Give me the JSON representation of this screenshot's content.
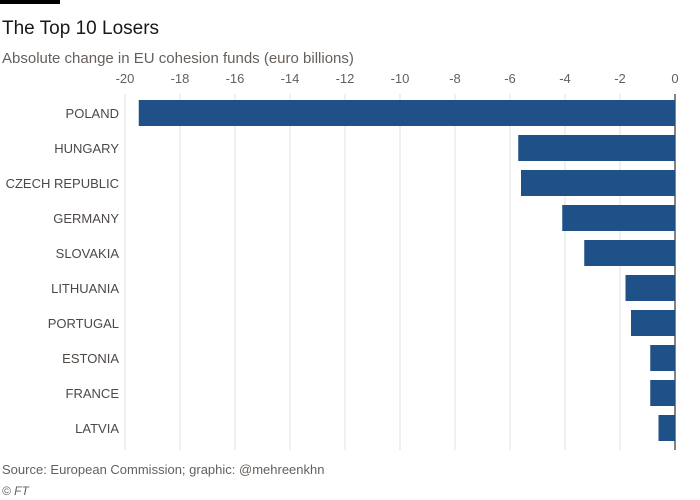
{
  "header": {
    "title": "The Top 10 Losers",
    "subtitle": "Absolute change in EU cohesion funds (euro billions)"
  },
  "footer": {
    "source": "Source: European Commission; graphic: @mehreenkhn",
    "copyright": "© FT"
  },
  "colors": {
    "bar": "#1f5188",
    "grid": "#e3e0dc",
    "zero_line": "#33302e",
    "tick_text": "#66605c",
    "label_text": "#4d4845"
  },
  "chart_data": {
    "type": "bar",
    "orientation": "horizontal",
    "title": "The Top 10 Losers",
    "subtitle": "Absolute change in EU cohesion funds (euro billions)",
    "xlabel": "",
    "ylabel": "",
    "categories": [
      "POLAND",
      "HUNGARY",
      "CZECH REPUBLIC",
      "GERMANY",
      "SLOVAKIA",
      "LITHUANIA",
      "PORTUGAL",
      "ESTONIA",
      "FRANCE",
      "LATVIA"
    ],
    "values": [
      -19.5,
      -5.7,
      -5.6,
      -4.1,
      -3.3,
      -1.8,
      -1.6,
      -0.9,
      -0.9,
      -0.6
    ],
    "xlim": [
      -20,
      0
    ],
    "xticks": [
      -20,
      -18,
      -16,
      -14,
      -12,
      -10,
      -8,
      -6,
      -4,
      -2,
      0
    ],
    "tick_position": "top",
    "grid": true
  }
}
